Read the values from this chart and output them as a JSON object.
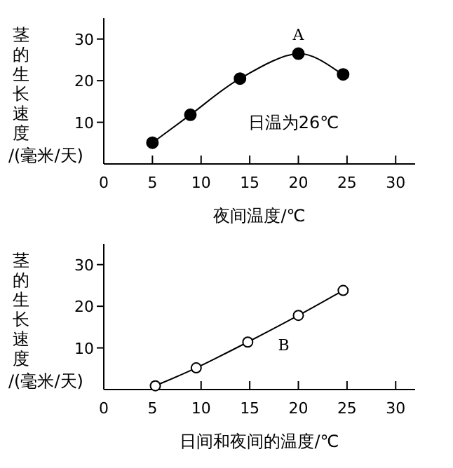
{
  "chart_data": [
    {
      "type": "line",
      "xlabel": "夜间温度/℃",
      "ylabel": "茎的生长速度/(毫米/天)",
      "xlim": [
        0,
        32
      ],
      "ylim": [
        0,
        35
      ],
      "xticks": [
        0,
        5,
        10,
        15,
        20,
        25,
        30
      ],
      "yticks": [
        10,
        20,
        30
      ],
      "marker": "circle",
      "grid": false,
      "series": [
        {
          "color": "#000000",
          "x": [
            5,
            8.9,
            14,
            20,
            24.6
          ],
          "values": [
            5.1,
            11.8,
            20.5,
            26.5,
            21.5
          ]
        }
      ],
      "annotations": [
        {
          "text": "A",
          "x": 20,
          "y": 26.5
        },
        "日温为26℃"
      ]
    },
    {
      "type": "line",
      "xlabel": "日间和夜间的温度/℃",
      "ylabel": "茎的生长速度/(毫米/天)",
      "xlim": [
        0,
        32
      ],
      "ylim": [
        0,
        35
      ],
      "xticks": [
        0,
        5,
        10,
        15,
        20,
        25,
        30
      ],
      "yticks": [
        10,
        20,
        30
      ],
      "marker": "circle",
      "grid": false,
      "series": [
        {
          "color": "#000000",
          "x": [
            5.3,
            9.5,
            14.8,
            20,
            24.6
          ],
          "values": [
            0.9,
            5.2,
            11.4,
            17.8,
            23.8
          ]
        }
      ],
      "annotations": [
        "B"
      ]
    }
  ]
}
